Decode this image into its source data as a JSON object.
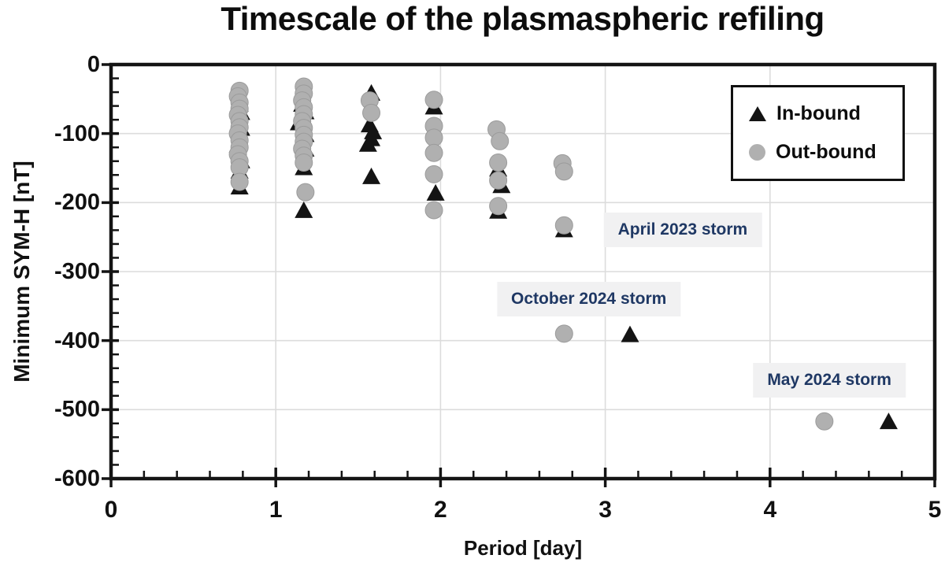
{
  "title": "Timescale of the plasmaspheric refiling",
  "colors": {
    "inbound_marker": "#141414",
    "outbound_marker": "#b0b0b0",
    "outbound_stroke": "#9b9b9b",
    "gridline": "#dcdcdc",
    "axis": "#141414",
    "annotation_text": "#1f3864",
    "annotation_background": "#f1f1f2"
  },
  "chart_data": {
    "type": "scatter",
    "title": "Timescale of the plasmaspheric refiling",
    "xlabel": "Period [day]",
    "ylabel": "Minimum SYM-H [nT]",
    "xlim": [
      0,
      5
    ],
    "ylim": [
      -600,
      0
    ],
    "x_ticks": [
      0,
      1,
      2,
      3,
      4,
      5
    ],
    "x_tick_labels": [
      "0",
      "1",
      "2",
      "3",
      "4",
      "5"
    ],
    "y_ticks": [
      0,
      -100,
      -200,
      -300,
      -400,
      -500,
      -600
    ],
    "y_tick_labels": [
      "0",
      "-100",
      "-200",
      "-300",
      "-400",
      "-500",
      "-600"
    ],
    "x_minor_step": 0.2,
    "y_minor_step": 20,
    "grid": true,
    "legend": {
      "position": "top-right",
      "entries": [
        {
          "label": "In-bound",
          "marker": "triangle",
          "color": "#141414"
        },
        {
          "label": "Out-bound",
          "marker": "circle",
          "color": "#b0b0b0"
        }
      ]
    },
    "series": [
      {
        "name": "In-bound",
        "marker": "triangle",
        "color": "#141414",
        "points": [
          [
            0.78,
            -58
          ],
          [
            0.79,
            -70
          ],
          [
            0.78,
            -82
          ],
          [
            0.79,
            -93
          ],
          [
            0.77,
            -117
          ],
          [
            0.79,
            -140
          ],
          [
            0.78,
            -155
          ],
          [
            0.78,
            -178
          ],
          [
            1.16,
            -58
          ],
          [
            1.18,
            -69
          ],
          [
            1.14,
            -85
          ],
          [
            1.18,
            -102
          ],
          [
            1.18,
            -123
          ],
          [
            1.17,
            -150
          ],
          [
            1.17,
            -212
          ],
          [
            1.58,
            -42
          ],
          [
            1.57,
            -88
          ],
          [
            1.59,
            -98
          ],
          [
            1.58,
            -108
          ],
          [
            1.56,
            -116
          ],
          [
            1.58,
            -163
          ],
          [
            1.96,
            -62
          ],
          [
            1.97,
            -187
          ],
          [
            2.35,
            -152
          ],
          [
            2.37,
            -176
          ],
          [
            2.35,
            -213
          ],
          [
            2.75,
            -240
          ],
          [
            3.15,
            -392
          ],
          [
            4.72,
            -518
          ]
        ]
      },
      {
        "name": "Out-bound",
        "marker": "circle",
        "color": "#b0b0b0",
        "points": [
          [
            0.78,
            -38
          ],
          [
            0.77,
            -46
          ],
          [
            0.78,
            -55
          ],
          [
            0.78,
            -64
          ],
          [
            0.77,
            -73
          ],
          [
            0.78,
            -82
          ],
          [
            0.78,
            -91
          ],
          [
            0.77,
            -100
          ],
          [
            0.78,
            -110
          ],
          [
            0.78,
            -120
          ],
          [
            0.77,
            -130
          ],
          [
            0.78,
            -140
          ],
          [
            0.78,
            -149
          ],
          [
            0.78,
            -170
          ],
          [
            1.17,
            -32
          ],
          [
            1.17,
            -42
          ],
          [
            1.16,
            -52
          ],
          [
            1.17,
            -62
          ],
          [
            1.17,
            -72
          ],
          [
            1.16,
            -82
          ],
          [
            1.17,
            -92
          ],
          [
            1.17,
            -102
          ],
          [
            1.17,
            -112
          ],
          [
            1.16,
            -122
          ],
          [
            1.17,
            -132
          ],
          [
            1.17,
            -142
          ],
          [
            1.18,
            -185
          ],
          [
            1.57,
            -52
          ],
          [
            1.58,
            -70
          ],
          [
            1.96,
            -51
          ],
          [
            1.96,
            -89
          ],
          [
            1.96,
            -106
          ],
          [
            1.96,
            -128
          ],
          [
            1.96,
            -159
          ],
          [
            1.96,
            -211
          ],
          [
            2.34,
            -94
          ],
          [
            2.36,
            -111
          ],
          [
            2.35,
            -142
          ],
          [
            2.35,
            -168
          ],
          [
            2.35,
            -205
          ],
          [
            2.74,
            -143
          ],
          [
            2.75,
            -155
          ],
          [
            2.75,
            -233
          ],
          [
            2.75,
            -390
          ],
          [
            4.33,
            -517
          ]
        ]
      }
    ],
    "annotations": [
      {
        "text": "April 2023 storm",
        "x": 3.47,
        "y": -240
      },
      {
        "text": "October 2024 storm",
        "x": 2.9,
        "y": -340
      },
      {
        "text": "May 2024 storm",
        "x": 4.36,
        "y": -457
      }
    ]
  }
}
